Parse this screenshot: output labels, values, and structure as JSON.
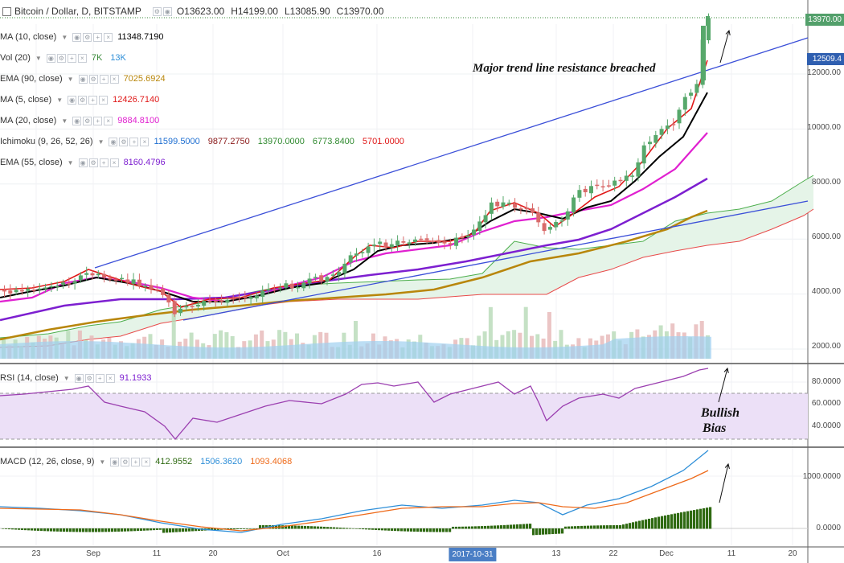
{
  "header": {
    "title": "Bitcoin / Dollar, D, BITSTAMP",
    "open": "O13623.00",
    "high": "H14199.00",
    "low": "L13085.90",
    "close": "C13970.00"
  },
  "indicators": [
    {
      "name": "MA (10, close)",
      "values": [
        {
          "text": "11348.7190",
          "color": "#000000"
        }
      ]
    },
    {
      "name": "Vol (20)",
      "values": [
        {
          "text": "7K",
          "color": "#3a8a3a"
        },
        {
          "text": "13K",
          "color": "#2f8fd8"
        }
      ]
    },
    {
      "name": "EMA (90, close)",
      "values": [
        {
          "text": "7025.6924",
          "color": "#b8860b"
        }
      ]
    },
    {
      "name": "MA (5, close)",
      "values": [
        {
          "text": "12426.7140",
          "color": "#e01818"
        }
      ]
    },
    {
      "name": "MA (20, close)",
      "values": [
        {
          "text": "9884.8100",
          "color": "#e020d0"
        }
      ]
    },
    {
      "name": "Ichimoku (9, 26, 52, 26)",
      "values": [
        {
          "text": "11599.5000",
          "color": "#1f6fd1"
        },
        {
          "text": "9877.2750",
          "color": "#8b1a1a"
        },
        {
          "text": "13970.0000",
          "color": "#2f8a2f"
        },
        {
          "text": "6773.8400",
          "color": "#2f8a2f"
        },
        {
          "text": "5701.0000",
          "color": "#e01818"
        }
      ]
    },
    {
      "name": "EMA (55, close)",
      "values": [
        {
          "text": "8160.4796",
          "color": "#7d1fd0"
        }
      ]
    }
  ],
  "rsi": {
    "name": "RSI (14, close)",
    "value": "91.1933",
    "value_color": "#7d1fd0"
  },
  "macd": {
    "name": "MACD (12, 26, close, 9)",
    "values": [
      {
        "text": "412.9552",
        "color": "#2f6a12"
      },
      {
        "text": "1506.3620",
        "color": "#2f8fd8"
      },
      {
        "text": "1093.4068",
        "color": "#ee6a1a"
      }
    ]
  },
  "price_axis": {
    "labels": [
      "12000.00",
      "10000.00",
      "8000.00",
      "6000.00",
      "4000.00",
      "2000.00"
    ],
    "last_price_tag": "13970.00",
    "line_tag": "12509.4"
  },
  "rsi_axis": {
    "labels": [
      "80.0000",
      "60.0000",
      "40.0000"
    ]
  },
  "macd_axis": {
    "labels": [
      "1000.0000",
      "0.0000"
    ]
  },
  "time_axis": {
    "labels": [
      "23",
      "Sep",
      "11",
      "20",
      "Oct",
      "16",
      "13",
      "22",
      "Dec",
      "11",
      "20"
    ],
    "highlight": "2017-10-31"
  },
  "annotations": {
    "trendline": "Major trend line resistance breached",
    "bias_line1": "Bullish",
    "bias_line2": "Bias"
  },
  "colors": {
    "up_candle": "#57a86b",
    "down_candle": "#d96a6a",
    "trendline": "#3b4fd8",
    "rsi_line": "#9b3fb0",
    "rsi_band": "#ece0f7",
    "price_tag": "#53a06b",
    "line_tag": "#2f5fb0"
  }
}
